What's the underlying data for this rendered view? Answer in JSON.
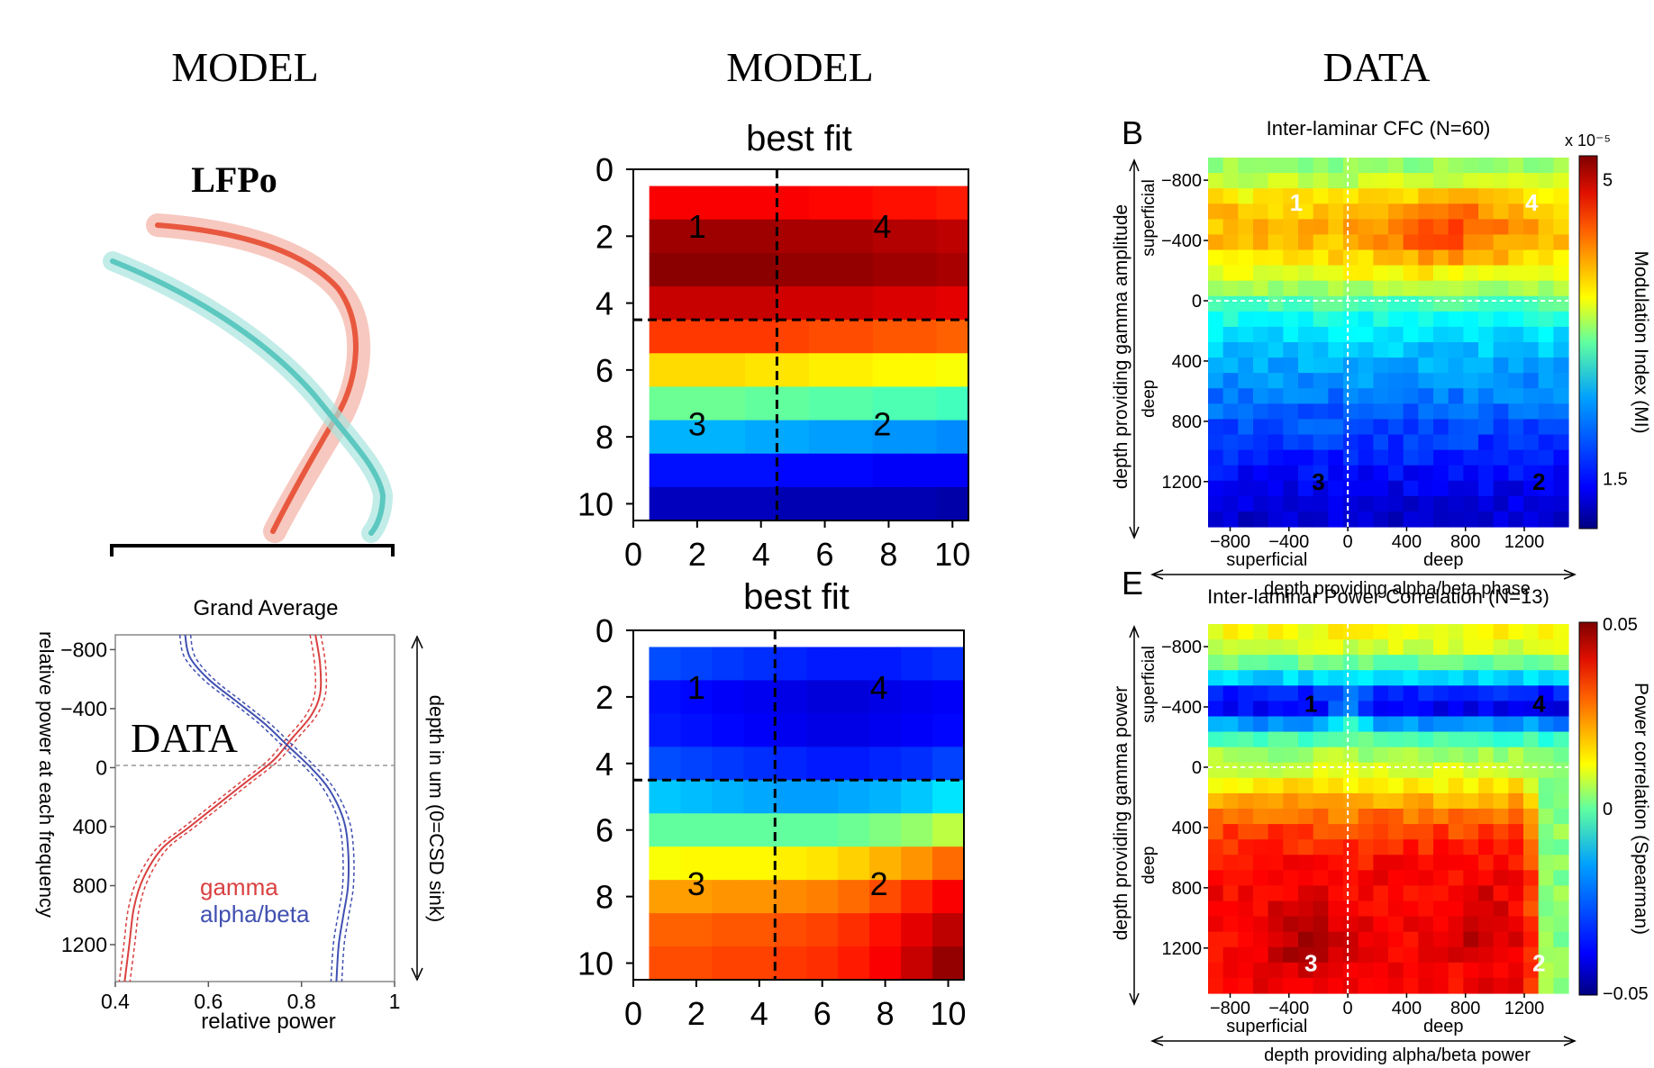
{
  "headers": [
    "MODEL",
    "MODEL",
    "DATA"
  ],
  "lfp": {
    "title": "LFPo",
    "gamma_color": "#e8583f",
    "alpha_color": "#5cc8c0"
  },
  "grand": {
    "title": "Grand Average",
    "overlay": "DATA",
    "ylabel": "relative power at each frequency",
    "xlabel": "relative power",
    "xticks": [
      "0.4",
      "0.6",
      "0.8",
      "1"
    ],
    "yticks": [
      "−800",
      "−400",
      "0",
      "400",
      "800",
      "1200"
    ],
    "right_label": "depth in um (0=CSD sink)",
    "legend": [
      "gamma",
      "alpha/beta"
    ],
    "colors": {
      "gamma": "#d94040",
      "alpha": "#4050b0"
    }
  },
  "fits": [
    {
      "title": "best fit",
      "ticks": [
        "0",
        "2",
        "4",
        "6",
        "8",
        "10"
      ],
      "labels": [
        "1",
        "4",
        "3",
        "2"
      ]
    },
    {
      "title": "best fit",
      "ticks": [
        "0",
        "2",
        "4",
        "6",
        "8",
        "10"
      ],
      "labels": [
        "1",
        "4",
        "3",
        "2"
      ]
    }
  ],
  "panelB": {
    "letter": "B",
    "title": "Inter-laminar CFC (N=60)",
    "xticks": [
      "−800",
      "−400",
      "0",
      "400",
      "800",
      "1200"
    ],
    "yticks": [
      "−800",
      "−400",
      "0",
      "400",
      "800",
      "1200"
    ],
    "xsub": [
      "superficial",
      "deep"
    ],
    "xlabel": "depth providing alpha/beta phase",
    "ysub": [
      "superficial",
      "deep"
    ],
    "ylabel": "depth providing gamma amplitude",
    "cbar_label": "Modulation Index (MI)",
    "cbar_ticks": [
      "5",
      "1.5"
    ],
    "cbar_exp": "x 10⁻⁵",
    "labels": [
      "1",
      "4",
      "3",
      "2"
    ]
  },
  "panelE": {
    "letter": "E",
    "title": "Inter-laminar Power Correlation (N=13)",
    "xticks": [
      "−800",
      "−400",
      "0",
      "400",
      "800",
      "1200"
    ],
    "yticks": [
      "−800",
      "−400",
      "0",
      "400",
      "800",
      "1200"
    ],
    "xsub": [
      "superficial",
      "deep"
    ],
    "xlabel": "depth providing alpha/beta power",
    "ysub": [
      "superficial",
      "deep"
    ],
    "ylabel": "depth providing gamma power",
    "cbar_label": "Power correlation (Spearman)",
    "cbar_ticks": [
      "0.05",
      "0",
      "−0.05"
    ],
    "labels": [
      "1",
      "4",
      "3",
      "2"
    ]
  },
  "chart_data": [
    {
      "type": "line",
      "title": "LFPo",
      "series": [
        {
          "values": [
            [
              0.55,
              -0.9
            ],
            [
              0.68,
              -0.7
            ],
            [
              0.78,
              -0.4
            ],
            [
              0.82,
              0.0
            ],
            [
              0.78,
              0.3
            ],
            [
              0.7,
              0.6
            ],
            [
              0.62,
              1.0
            ]
          ]
        },
        {
          "values": [
            [
              0.0,
              -0.7
            ],
            [
              0.3,
              -0.4
            ],
            [
              0.55,
              -0.1
            ],
            [
              0.75,
              0.2
            ],
            [
              0.88,
              0.5
            ],
            [
              0.95,
              0.8
            ],
            [
              0.92,
              1.0
            ]
          ]
        }
      ]
    },
    {
      "type": "line",
      "title": "Grand Average",
      "xlabel": "relative power",
      "ylabel": "relative power at each frequency",
      "xlim": [
        0.4,
        1
      ],
      "ylim": [
        1450,
        -900
      ],
      "series": [
        {
          "name": "gamma",
          "x": [
            0.83,
            0.84,
            0.84,
            0.82,
            0.78,
            0.74,
            0.68,
            0.62,
            0.56,
            0.5,
            0.46,
            0.44,
            0.43,
            0.42
          ],
          "y": [
            -900,
            -700,
            -500,
            -350,
            -200,
            -50,
            100,
            250,
            400,
            550,
            750,
            950,
            1200,
            1450
          ]
        },
        {
          "name": "alpha/beta",
          "x": [
            0.55,
            0.56,
            0.6,
            0.66,
            0.72,
            0.77,
            0.82,
            0.86,
            0.89,
            0.9,
            0.9,
            0.89,
            0.88,
            0.875
          ],
          "y": [
            -900,
            -750,
            -600,
            -450,
            -300,
            -150,
            0,
            150,
            350,
            550,
            800,
            1000,
            1200,
            1450
          ]
        }
      ]
    },
    {
      "type": "heatmap",
      "title": "best fit",
      "x": [
        1,
        2,
        3,
        4,
        5,
        6,
        7,
        8,
        9,
        10
      ],
      "y": [
        1,
        2,
        3,
        4,
        5,
        6,
        7,
        8,
        9,
        10
      ],
      "xlim": [
        0,
        10.5
      ],
      "ylim": [
        10.5,
        0
      ],
      "colormap": "jet",
      "values": [
        [
          0.88,
          0.88,
          0.88,
          0.88,
          0.88,
          0.87,
          0.87,
          0.86,
          0.86,
          0.85
        ],
        [
          0.97,
          0.97,
          0.97,
          0.97,
          0.96,
          0.96,
          0.96,
          0.95,
          0.95,
          0.94
        ],
        [
          0.99,
          0.99,
          0.99,
          0.99,
          0.98,
          0.98,
          0.98,
          0.97,
          0.97,
          0.96
        ],
        [
          0.93,
          0.93,
          0.93,
          0.93,
          0.92,
          0.92,
          0.92,
          0.91,
          0.91,
          0.9
        ],
        [
          0.82,
          0.82,
          0.82,
          0.82,
          0.81,
          0.8,
          0.8,
          0.79,
          0.79,
          0.78
        ],
        [
          0.66,
          0.66,
          0.66,
          0.65,
          0.65,
          0.64,
          0.64,
          0.63,
          0.63,
          0.62
        ],
        [
          0.48,
          0.48,
          0.48,
          0.47,
          0.47,
          0.46,
          0.46,
          0.45,
          0.45,
          0.44
        ],
        [
          0.3,
          0.3,
          0.3,
          0.29,
          0.29,
          0.28,
          0.28,
          0.27,
          0.27,
          0.26
        ],
        [
          0.14,
          0.14,
          0.14,
          0.14,
          0.13,
          0.13,
          0.13,
          0.12,
          0.12,
          0.12
        ],
        [
          0.06,
          0.06,
          0.06,
          0.06,
          0.05,
          0.05,
          0.05,
          0.05,
          0.05,
          0.04
        ]
      ]
    },
    {
      "type": "heatmap",
      "title": "best fit",
      "x": [
        1,
        2,
        3,
        4,
        5,
        6,
        7,
        8,
        9,
        10
      ],
      "y": [
        1,
        2,
        3,
        4,
        5,
        6,
        7,
        8,
        9,
        10
      ],
      "xlim": [
        0,
        10.5
      ],
      "ylim": [
        10.5,
        0
      ],
      "colormap": "jet",
      "values": [
        [
          0.2,
          0.19,
          0.18,
          0.17,
          0.16,
          0.15,
          0.15,
          0.15,
          0.16,
          0.17
        ],
        [
          0.14,
          0.13,
          0.12,
          0.11,
          0.1,
          0.09,
          0.09,
          0.1,
          0.11,
          0.12
        ],
        [
          0.15,
          0.14,
          0.13,
          0.12,
          0.11,
          0.1,
          0.1,
          0.11,
          0.12,
          0.13
        ],
        [
          0.2,
          0.19,
          0.18,
          0.17,
          0.16,
          0.15,
          0.15,
          0.16,
          0.17,
          0.19
        ],
        [
          0.32,
          0.31,
          0.3,
          0.29,
          0.28,
          0.28,
          0.29,
          0.3,
          0.32,
          0.35
        ],
        [
          0.47,
          0.47,
          0.47,
          0.47,
          0.47,
          0.47,
          0.48,
          0.5,
          0.52,
          0.56
        ],
        [
          0.62,
          0.63,
          0.63,
          0.63,
          0.64,
          0.65,
          0.67,
          0.7,
          0.73,
          0.77
        ],
        [
          0.72,
          0.72,
          0.73,
          0.73,
          0.74,
          0.75,
          0.77,
          0.8,
          0.84,
          0.88
        ],
        [
          0.78,
          0.78,
          0.79,
          0.79,
          0.8,
          0.81,
          0.83,
          0.86,
          0.9,
          0.94
        ],
        [
          0.8,
          0.8,
          0.81,
          0.81,
          0.82,
          0.83,
          0.85,
          0.88,
          0.93,
          0.98
        ]
      ]
    },
    {
      "type": "heatmap",
      "title": "Inter-laminar CFC (N=60)",
      "xlabel": "depth providing alpha/beta phase",
      "ylabel": "depth providing gamma amplitude",
      "xlim": [
        -950,
        1500
      ],
      "ylim": [
        1500,
        -950
      ],
      "colormap": "jet",
      "colorbar": {
        "label": "Modulation Index (MI)",
        "min": 1.5,
        "max": 5,
        "scale": "x 10^-5"
      }
    },
    {
      "type": "heatmap",
      "title": "Inter-laminar Power Correlation (N=13)",
      "xlabel": "depth providing alpha/beta power",
      "ylabel": "depth providing gamma power",
      "xlim": [
        -950,
        1500
      ],
      "ylim": [
        1500,
        -950
      ],
      "colormap": "jet",
      "colorbar": {
        "label": "Power correlation (Spearman)",
        "min": -0.05,
        "max": 0.05
      }
    }
  ]
}
